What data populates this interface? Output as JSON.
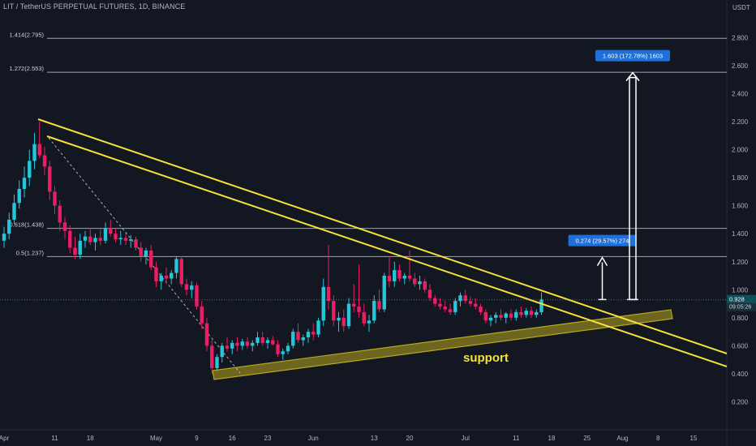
{
  "header": {
    "title": "LIT / TetherUS PERPETUAL FUTURES, 1D, BINANCE"
  },
  "colors": {
    "background": "#131722",
    "bull": "#26c6da",
    "bear": "#e91e63",
    "trendline": "#f5e13a",
    "support_fill": "#b8a71e",
    "label_bg": "#1e6fd9",
    "grid_line": "#d1d4dc"
  },
  "chart_data": {
    "type": "candlestick",
    "price_axis_unit": "USDT",
    "y_ticks": [
      "2.800",
      "2.600",
      "2.400",
      "2.200",
      "2.000",
      "1.800",
      "1.600",
      "1.400",
      "1.200",
      "1.000",
      "0.800",
      "0.600",
      "0.400",
      "0.200"
    ],
    "ylim": [
      0.1,
      3.05
    ],
    "x_ticks": [
      {
        "label": "Apr",
        "day": 0
      },
      {
        "label": "11",
        "day": 10
      },
      {
        "label": "18",
        "day": 17
      },
      {
        "label": "May",
        "day": 30
      },
      {
        "label": "9",
        "day": 38
      },
      {
        "label": "16",
        "day": 45
      },
      {
        "label": "23",
        "day": 52
      },
      {
        "label": "Jun",
        "day": 61
      },
      {
        "label": "13",
        "day": 73
      },
      {
        "label": "20",
        "day": 80
      },
      {
        "label": "Jul",
        "day": 91
      },
      {
        "label": "11",
        "day": 101
      },
      {
        "label": "18",
        "day": 108
      },
      {
        "label": "25",
        "day": 115
      },
      {
        "label": "Aug",
        "day": 122
      },
      {
        "label": "8",
        "day": 129
      },
      {
        "label": "15",
        "day": 136
      }
    ],
    "current_price": {
      "value": "0.928",
      "countdown": "09:05:26"
    },
    "fib_levels": [
      {
        "label": "1.414(2.795)",
        "price": 2.795
      },
      {
        "label": "1.272(2.553)",
        "price": 2.553
      },
      {
        "label": "0.618(1.438)",
        "price": 1.438
      },
      {
        "label": "0.5(1.237)",
        "price": 1.237
      }
    ],
    "targets": [
      {
        "label": "0.274 (29.57%) 274",
        "from": 0.93,
        "to": 1.23,
        "day": 118
      },
      {
        "label": "1.603 (172.78%) 1603",
        "from": 0.93,
        "to": 2.55,
        "day": 124
      }
    ],
    "annotation": "support",
    "candles": [
      [
        1.35,
        1.45,
        1.3,
        1.4
      ],
      [
        1.4,
        1.55,
        1.36,
        1.5
      ],
      [
        1.5,
        1.68,
        1.47,
        1.62
      ],
      [
        1.62,
        1.78,
        1.58,
        1.72
      ],
      [
        1.72,
        1.88,
        1.66,
        1.8
      ],
      [
        1.8,
        2.0,
        1.74,
        1.92
      ],
      [
        1.92,
        2.12,
        1.86,
        2.04
      ],
      [
        2.04,
        2.2,
        1.94,
        1.96
      ],
      [
        1.96,
        2.02,
        1.82,
        1.88
      ],
      [
        1.88,
        1.92,
        1.64,
        1.7
      ],
      [
        1.7,
        1.74,
        1.54,
        1.6
      ],
      [
        1.6,
        1.64,
        1.42,
        1.48
      ],
      [
        1.48,
        1.52,
        1.36,
        1.42
      ],
      [
        1.42,
        1.46,
        1.26,
        1.3
      ],
      [
        1.3,
        1.38,
        1.22,
        1.25
      ],
      [
        1.25,
        1.4,
        1.22,
        1.35
      ],
      [
        1.35,
        1.42,
        1.3,
        1.38
      ],
      [
        1.38,
        1.44,
        1.32,
        1.34
      ],
      [
        1.34,
        1.4,
        1.28,
        1.37
      ],
      [
        1.37,
        1.43,
        1.32,
        1.35
      ],
      [
        1.35,
        1.48,
        1.33,
        1.44
      ],
      [
        1.44,
        1.5,
        1.38,
        1.4
      ],
      [
        1.4,
        1.44,
        1.34,
        1.36
      ],
      [
        1.36,
        1.42,
        1.32,
        1.37
      ],
      [
        1.37,
        1.4,
        1.32,
        1.35
      ],
      [
        1.35,
        1.39,
        1.3,
        1.36
      ],
      [
        1.36,
        1.38,
        1.28,
        1.3
      ],
      [
        1.3,
        1.34,
        1.2,
        1.24
      ],
      [
        1.24,
        1.3,
        1.18,
        1.28
      ],
      [
        1.28,
        1.32,
        1.14,
        1.16
      ],
      [
        1.16,
        1.2,
        1.02,
        1.06
      ],
      [
        1.06,
        1.12,
        1.0,
        1.1
      ],
      [
        1.1,
        1.16,
        1.04,
        1.08
      ],
      [
        1.08,
        1.14,
        1.04,
        1.12
      ],
      [
        1.12,
        1.24,
        1.08,
        1.22
      ],
      [
        1.22,
        1.24,
        1.02,
        1.04
      ],
      [
        1.04,
        1.08,
        0.96,
        1.0
      ],
      [
        1.0,
        1.06,
        0.94,
        1.03
      ],
      [
        1.03,
        1.05,
        0.86,
        0.88
      ],
      [
        0.88,
        0.92,
        0.72,
        0.76
      ],
      [
        0.76,
        0.8,
        0.56,
        0.6
      ],
      [
        0.6,
        0.64,
        0.4,
        0.44
      ],
      [
        0.44,
        0.54,
        0.42,
        0.52
      ],
      [
        0.52,
        0.62,
        0.48,
        0.6
      ],
      [
        0.6,
        0.66,
        0.56,
        0.58
      ],
      [
        0.58,
        0.64,
        0.54,
        0.62
      ],
      [
        0.62,
        0.66,
        0.56,
        0.6
      ],
      [
        0.6,
        0.65,
        0.57,
        0.63
      ],
      [
        0.63,
        0.66,
        0.58,
        0.6
      ],
      [
        0.6,
        0.64,
        0.56,
        0.62
      ],
      [
        0.62,
        0.7,
        0.6,
        0.66
      ],
      [
        0.66,
        0.7,
        0.6,
        0.62
      ],
      [
        0.62,
        0.66,
        0.58,
        0.64
      ],
      [
        0.64,
        0.67,
        0.6,
        0.61
      ],
      [
        0.61,
        0.64,
        0.52,
        0.54
      ],
      [
        0.54,
        0.58,
        0.5,
        0.56
      ],
      [
        0.56,
        0.62,
        0.54,
        0.6
      ],
      [
        0.6,
        0.72,
        0.58,
        0.7
      ],
      [
        0.7,
        0.76,
        0.62,
        0.64
      ],
      [
        0.64,
        0.68,
        0.6,
        0.66
      ],
      [
        0.66,
        0.72,
        0.62,
        0.7
      ],
      [
        0.7,
        0.76,
        0.64,
        0.68
      ],
      [
        0.68,
        0.8,
        0.66,
        0.78
      ],
      [
        0.78,
        1.08,
        0.74,
        1.02
      ],
      [
        1.02,
        1.32,
        0.86,
        0.92
      ],
      [
        0.92,
        0.96,
        0.74,
        0.78
      ],
      [
        0.78,
        0.84,
        0.7,
        0.8
      ],
      [
        0.8,
        0.86,
        0.7,
        0.74
      ],
      [
        0.74,
        0.94,
        0.72,
        0.9
      ],
      [
        0.9,
        1.04,
        0.84,
        0.88
      ],
      [
        0.88,
        1.18,
        0.8,
        0.84
      ],
      [
        0.84,
        0.9,
        0.74,
        0.76
      ],
      [
        0.76,
        0.82,
        0.7,
        0.78
      ],
      [
        0.78,
        0.96,
        0.76,
        0.92
      ],
      [
        0.92,
        1.0,
        0.84,
        0.86
      ],
      [
        0.86,
        1.12,
        0.84,
        1.1
      ],
      [
        1.1,
        1.24,
        1.02,
        1.06
      ],
      [
        1.06,
        1.2,
        1.02,
        1.14
      ],
      [
        1.14,
        1.18,
        1.06,
        1.08
      ],
      [
        1.08,
        1.12,
        1.04,
        1.1
      ],
      [
        1.1,
        1.28,
        1.06,
        1.08
      ],
      [
        1.08,
        1.12,
        1.02,
        1.04
      ],
      [
        1.04,
        1.1,
        1.0,
        1.06
      ],
      [
        1.06,
        1.08,
        0.98,
        1.0
      ],
      [
        1.0,
        1.04,
        0.92,
        0.94
      ],
      [
        0.94,
        0.96,
        0.88,
        0.9
      ],
      [
        0.9,
        0.94,
        0.86,
        0.88
      ],
      [
        0.88,
        0.92,
        0.84,
        0.86
      ],
      [
        0.86,
        0.9,
        0.82,
        0.84
      ],
      [
        0.84,
        0.94,
        0.82,
        0.92
      ],
      [
        0.92,
        0.98,
        0.88,
        0.96
      ],
      [
        0.96,
        1.0,
        0.9,
        0.92
      ],
      [
        0.92,
        0.95,
        0.88,
        0.9
      ],
      [
        0.9,
        0.94,
        0.86,
        0.88
      ],
      [
        0.88,
        0.9,
        0.82,
        0.84
      ],
      [
        0.84,
        0.86,
        0.76,
        0.78
      ],
      [
        0.78,
        0.82,
        0.74,
        0.8
      ],
      [
        0.8,
        0.84,
        0.76,
        0.82
      ],
      [
        0.82,
        0.86,
        0.78,
        0.8
      ],
      [
        0.8,
        0.84,
        0.76,
        0.83
      ],
      [
        0.83,
        0.86,
        0.78,
        0.8
      ],
      [
        0.8,
        0.86,
        0.78,
        0.84
      ],
      [
        0.84,
        0.88,
        0.8,
        0.82
      ],
      [
        0.82,
        0.87,
        0.8,
        0.85
      ],
      [
        0.85,
        0.88,
        0.8,
        0.82
      ],
      [
        0.82,
        0.86,
        0.8,
        0.84
      ],
      [
        0.84,
        0.98,
        0.82,
        0.93
      ]
    ]
  }
}
